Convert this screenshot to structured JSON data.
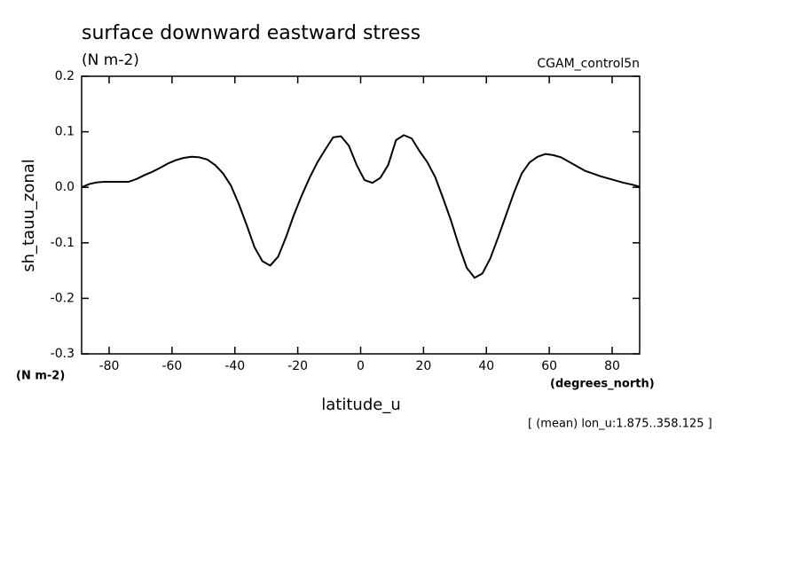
{
  "chart_data": {
    "type": "line",
    "title": "surface downward eastward stress",
    "subtitle": "(N m-2)",
    "annotation": "CGAM_control5n",
    "ylabel": "sh_tauu_zonal",
    "yunits": "(N m-2)",
    "xlabel": "latitude_u",
    "xunits": "(degrees_north)",
    "note": "[ (mean) lon_u:1.875..358.125 ]",
    "x": [
      -88.75,
      -86.25,
      -83.75,
      -81.25,
      -78.75,
      -76.25,
      -73.75,
      -71.25,
      -68.75,
      -66.25,
      -63.75,
      -61.25,
      -58.75,
      -56.25,
      -53.75,
      -51.25,
      -48.75,
      -46.25,
      -43.75,
      -41.25,
      -38.75,
      -36.25,
      -33.75,
      -31.25,
      -28.75,
      -26.25,
      -23.75,
      -21.25,
      -18.75,
      -16.25,
      -13.75,
      -11.25,
      -8.75,
      -6.25,
      -3.75,
      -1.25,
      1.25,
      3.75,
      6.25,
      8.75,
      11.25,
      13.75,
      16.25,
      18.75,
      21.25,
      23.75,
      26.25,
      28.75,
      31.25,
      33.75,
      36.25,
      38.75,
      41.25,
      43.75,
      46.25,
      48.75,
      51.25,
      53.75,
      56.25,
      58.75,
      61.25,
      63.75,
      66.25,
      68.75,
      71.25,
      73.75,
      76.25,
      78.75,
      81.25,
      83.75,
      86.25,
      88.75
    ],
    "series": [
      {
        "name": "sh_tauu_zonal",
        "color": "#000000",
        "values": [
          0.0,
          0.006,
          0.009,
          0.01,
          0.01,
          0.01,
          0.01,
          0.015,
          0.022,
          0.028,
          0.035,
          0.043,
          0.049,
          0.053,
          0.055,
          0.054,
          0.05,
          0.04,
          0.025,
          0.003,
          -0.03,
          -0.068,
          -0.108,
          -0.133,
          -0.141,
          -0.125,
          -0.09,
          -0.05,
          -0.015,
          0.017,
          0.045,
          0.068,
          0.09,
          0.092,
          0.075,
          0.04,
          0.013,
          0.008,
          0.017,
          0.04,
          0.085,
          0.094,
          0.088,
          0.065,
          0.045,
          0.018,
          -0.02,
          -0.06,
          -0.105,
          -0.145,
          -0.163,
          -0.155,
          -0.128,
          -0.09,
          -0.05,
          -0.01,
          0.025,
          0.045,
          0.055,
          0.06,
          0.058,
          0.054,
          0.046,
          0.038,
          0.03,
          0.025,
          0.02,
          0.016,
          0.012,
          0.008,
          0.005,
          0.001
        ]
      }
    ],
    "xlim": [
      -88.75,
      88.75
    ],
    "xticks": [
      -80,
      -60,
      -40,
      -20,
      0,
      20,
      40,
      60,
      80
    ],
    "ylim": [
      -0.3,
      0.2
    ],
    "yticks": [
      -0.3,
      -0.2,
      -0.1,
      {
        "value": 0,
        "label": "0.0"
      },
      0.1,
      0.2
    ],
    "grid": false
  }
}
